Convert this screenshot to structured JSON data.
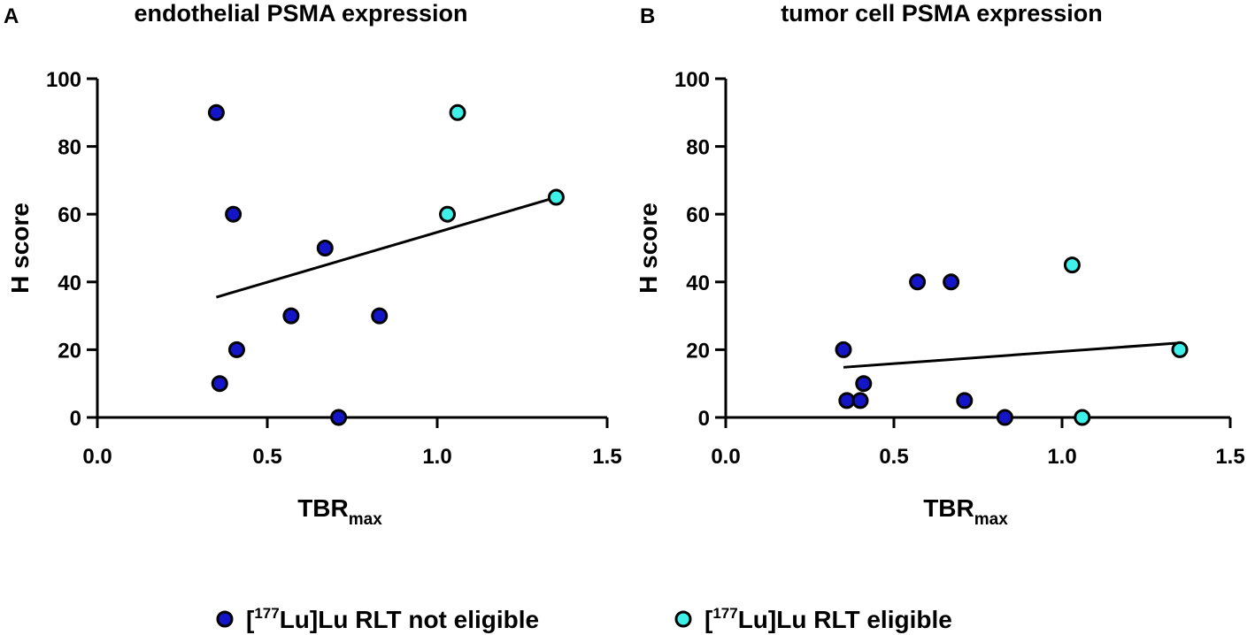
{
  "legend": [
    {
      "label_open": "[",
      "label_sup": "177",
      "label_rest": "Lu]Lu RLT not eligible",
      "color": "#1515c8"
    },
    {
      "label_open": "[",
      "label_sup": "177",
      "label_rest": "Lu]Lu RLT eligible",
      "color": "#3ff0e8"
    }
  ],
  "chart_data": [
    {
      "type": "scatter",
      "panel_letter": "A",
      "title": "endothelial PSMA expression",
      "xlabel_main": "TBR",
      "xlabel_sub": "max",
      "ylabel": "H score",
      "xlim": [
        0,
        1.5
      ],
      "ylim": [
        0,
        100
      ],
      "xticks": [
        "0.0",
        "0.5",
        "1.0",
        "1.5"
      ],
      "yticks": [
        "0",
        "20",
        "40",
        "60",
        "80",
        "100"
      ],
      "series": [
        {
          "name": "[177Lu]Lu RLT not eligible",
          "color": "#1515c8",
          "x": [
            0.35,
            0.36,
            0.4,
            0.41,
            0.57,
            0.67,
            0.71,
            0.83
          ],
          "y": [
            90,
            10,
            60,
            20,
            30,
            50,
            0,
            30
          ]
        },
        {
          "name": "[177Lu]Lu RLT eligible",
          "color": "#3ff0e8",
          "x": [
            1.03,
            1.06,
            1.35
          ],
          "y": [
            60,
            90,
            65
          ]
        }
      ],
      "fit_line": {
        "x": [
          0.35,
          1.35
        ],
        "y": [
          35.5,
          65
        ]
      }
    },
    {
      "type": "scatter",
      "panel_letter": "B",
      "title": "tumor cell PSMA expression",
      "xlabel_main": "TBR",
      "xlabel_sub": "max",
      "ylabel": "H score",
      "xlim": [
        0,
        1.5
      ],
      "ylim": [
        0,
        100
      ],
      "xticks": [
        "0.0",
        "0.5",
        "1.0",
        "1.5"
      ],
      "yticks": [
        "0",
        "20",
        "40",
        "60",
        "80",
        "100"
      ],
      "series": [
        {
          "name": "[177Lu]Lu RLT not eligible",
          "color": "#1515c8",
          "x": [
            0.35,
            0.36,
            0.4,
            0.41,
            0.57,
            0.67,
            0.71,
            0.83
          ],
          "y": [
            20,
            5,
            5,
            10,
            40,
            40,
            5,
            0
          ]
        },
        {
          "name": "[177Lu]Lu RLT eligible",
          "color": "#3ff0e8",
          "x": [
            1.03,
            1.06,
            1.35
          ],
          "y": [
            45,
            0,
            20
          ]
        }
      ],
      "fit_line": {
        "x": [
          0.35,
          1.35
        ],
        "y": [
          14.8,
          22
        ]
      }
    }
  ]
}
